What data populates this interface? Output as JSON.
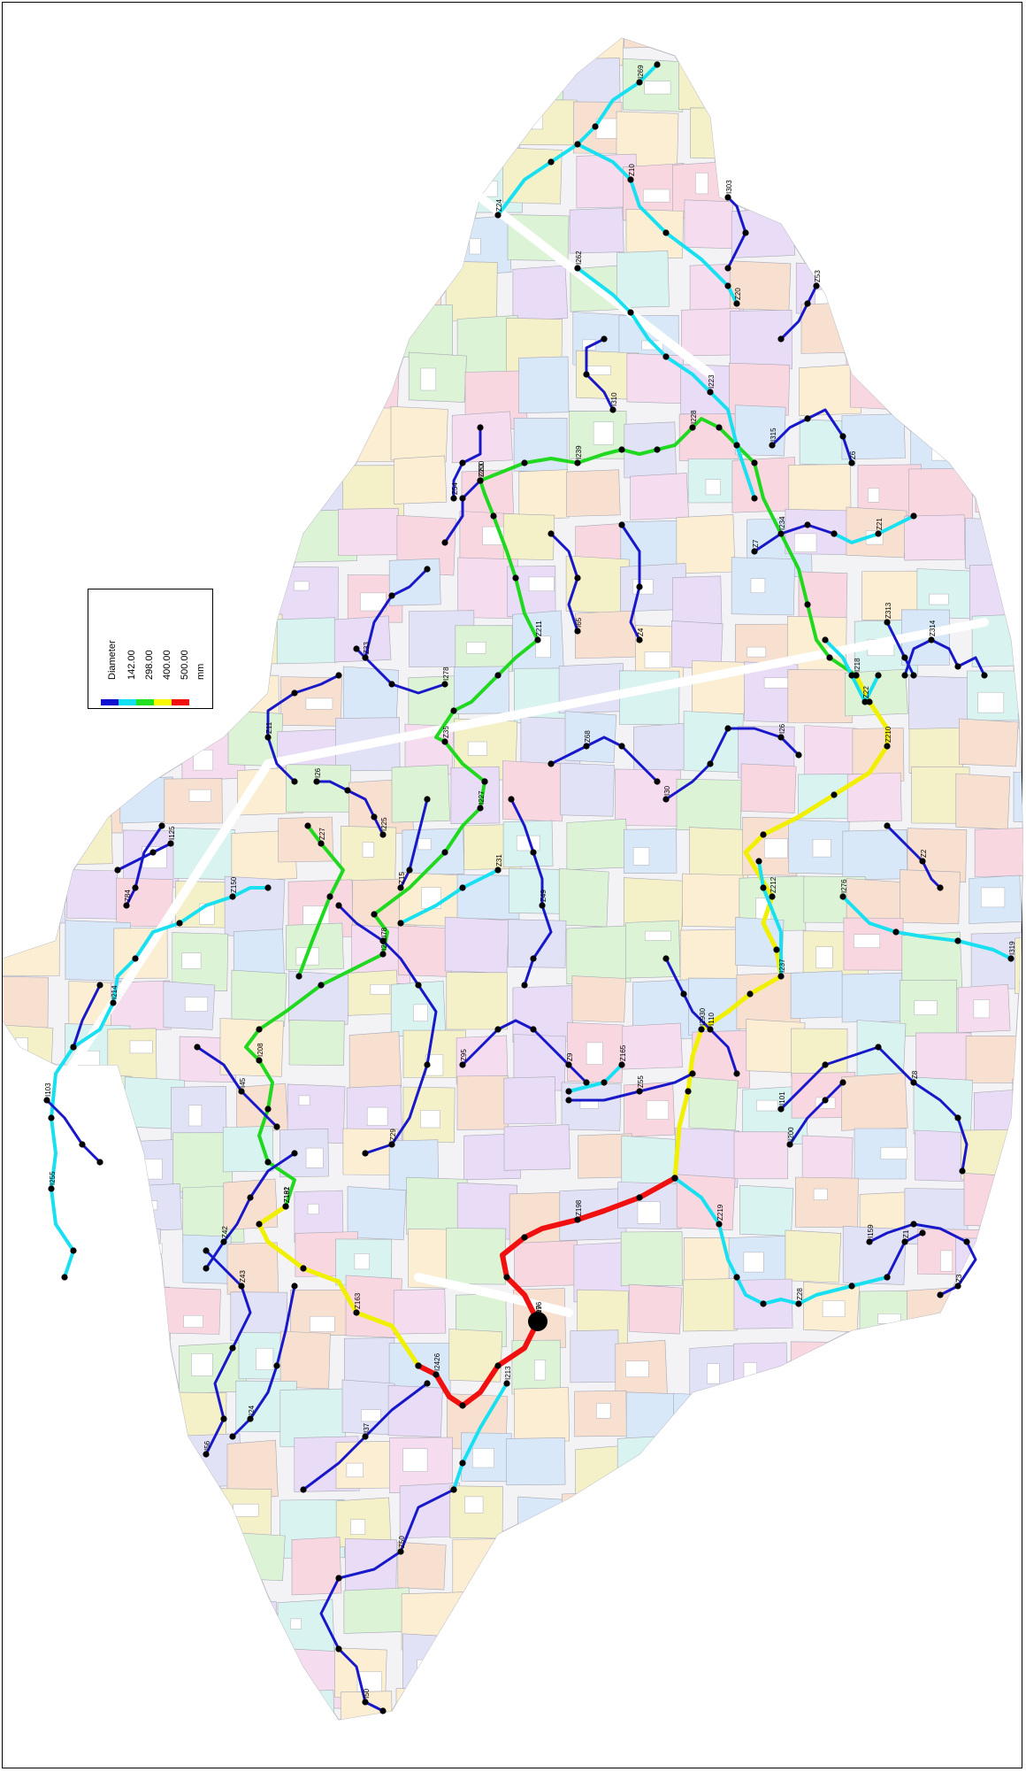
{
  "legend": {
    "title": "Diameter",
    "unit": "mm",
    "classes": [
      {
        "value": "142.00",
        "color": "#1010d0"
      },
      {
        "value": "298.00",
        "color": "#10e0f0"
      },
      {
        "value": "400.00",
        "color": "#20e020"
      },
      {
        "value": "500.00",
        "color": "#f8f800"
      },
      {
        "value": "",
        "color": "#f01010"
      }
    ]
  },
  "colors": {
    "pipe_142": "#1818c8",
    "pipe_298": "#18e0f0",
    "pipe_400": "#20d820",
    "pipe_500": "#f0f000",
    "pipe_max": "#f01010",
    "node": "#000000",
    "parcel_palette": [
      "#f9d7e1",
      "#d8e8f8",
      "#dcf3d6",
      "#fbeed2",
      "#e9dcf6",
      "#f7e0d0",
      "#d9f3f0",
      "#f4f0c8",
      "#e2e2f6",
      "#f6dcef"
    ]
  },
  "node_labels": [
    "Z97",
    "Z198",
    "Z196",
    "I2426",
    "Z163",
    "Z192",
    "I2930",
    "Z212",
    "Z210",
    "Z181",
    "I208",
    "I291",
    "I227",
    "Z35",
    "Z211",
    "Z200",
    "I239",
    "I228",
    "I234",
    "I218",
    "Z27",
    "Z219",
    "Z28",
    "I213",
    "Z165",
    "I237",
    "I276",
    "I319",
    "Z22",
    "Z21",
    "Z150",
    "I214",
    "I255",
    "I262",
    "I223",
    "Z24",
    "I269",
    "Z10",
    "Z20",
    "Z31",
    "Z42",
    "Z50",
    "I50",
    "I37",
    "Z43",
    "I56",
    "I24",
    "I78",
    "Z29",
    "I45",
    "Z11",
    "I26",
    "I225",
    "Z15",
    "Z49",
    "Z95",
    "Z9",
    "Z55",
    "I110",
    "I30",
    "I26",
    "Z68",
    "I101",
    "Z8",
    "I200",
    "I159",
    "Z3",
    "Z1",
    "Z2",
    "Z314",
    "Z313",
    "Z7",
    "I315",
    "Z6",
    "Z53",
    "I303",
    "I310",
    "Z4",
    "I65",
    "Z54",
    "Z33",
    "I278",
    "I283",
    "Z84",
    "I125",
    "I103"
  ]
}
